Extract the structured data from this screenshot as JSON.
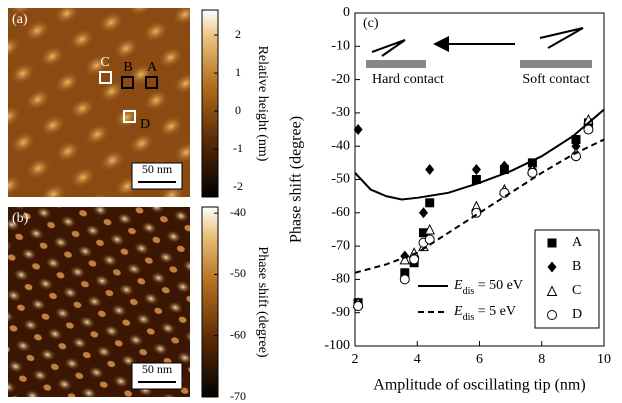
{
  "chart_data": [
    {
      "type": "image",
      "label": "(a)",
      "scale_bar": "50 nm",
      "annotations": [
        "C",
        "B",
        "A",
        "D"
      ],
      "colorbar": {
        "label": "Relative height  (nm)",
        "ylim": [
          -2.26,
          2.66
        ],
        "yticks": [
          2,
          1,
          0,
          -1,
          -2
        ]
      }
    },
    {
      "type": "image",
      "label": "(b)",
      "scale_bar": "50 nm",
      "colorbar": {
        "label": "Phase shift (degree)",
        "ylim": [
          -70,
          -39
        ],
        "yticks": [
          -40,
          -50,
          -60,
          -70
        ]
      }
    },
    {
      "type": "scatter",
      "label": "(c)",
      "xlabel": "Amplitude of oscillating tip (nm)",
      "ylabel": "Phase shift (degree)",
      "xlim": [
        2,
        10
      ],
      "xticks": [
        2,
        4,
        6,
        8,
        10
      ],
      "ylim": [
        -100,
        0
      ],
      "yticks": [
        0,
        -10,
        -20,
        -30,
        -40,
        -50,
        -60,
        -70,
        -80,
        -90,
        -100
      ],
      "annotations": [
        "Hard contact",
        "Soft contact"
      ],
      "series": [
        {
          "name": "A",
          "marker": "square",
          "color": "#000",
          "x": [
            2.1,
            3.6,
            3.9,
            4.2,
            4.4,
            5.9,
            6.8,
            7.7,
            9.1,
            9.5
          ],
          "values": [
            -87,
            -78,
            -75,
            -66,
            -57,
            -50,
            -47,
            -45,
            -38,
            -33
          ]
        },
        {
          "name": "B",
          "marker": "diamond",
          "color": "#000",
          "x": [
            2.1,
            3.6,
            3.9,
            4.2,
            4.4,
            5.9,
            6.8,
            7.7,
            9.1,
            9.5
          ],
          "values": [
            -35,
            -73,
            -73,
            -60,
            -47,
            -47,
            -46,
            -47,
            -40,
            -33
          ]
        },
        {
          "name": "C",
          "marker": "triangle",
          "color": "#000",
          "x": [
            2.1,
            3.6,
            3.9,
            4.2,
            4.4,
            5.9,
            6.8,
            7.7,
            9.1,
            9.5
          ],
          "values": [
            -87,
            -74,
            -72,
            -70,
            -65,
            -58,
            -53,
            -47,
            -42,
            -32
          ]
        },
        {
          "name": "D",
          "marker": "circle",
          "color": "#000",
          "x": [
            2.1,
            3.6,
            3.9,
            4.2,
            4.4,
            5.9,
            6.8,
            7.7,
            9.1,
            9.5
          ],
          "values": [
            -88,
            -80,
            -74,
            -69,
            -68,
            -60,
            -54,
            -48,
            -43,
            -35
          ]
        }
      ],
      "curves": [
        {
          "name": [
            "E",
            "dis",
            " = 50 eV"
          ],
          "dash": false,
          "color": "#000",
          "x": [
            2,
            2.5,
            3,
            3.5,
            4,
            5,
            6,
            7,
            8,
            9,
            10
          ],
          "values": [
            -48,
            -53,
            -55,
            -56,
            -55.5,
            -54,
            -51,
            -47.5,
            -43,
            -37,
            -29
          ]
        },
        {
          "name": [
            "E",
            "dis",
            " = 5 eV"
          ],
          "dash": true,
          "color": "#000",
          "x": [
            2,
            3,
            4,
            5,
            6,
            7,
            8,
            9,
            10
          ],
          "values": [
            -78,
            -75.5,
            -72,
            -66,
            -60,
            -54,
            -48,
            -42.5,
            -38
          ]
        }
      ]
    }
  ]
}
